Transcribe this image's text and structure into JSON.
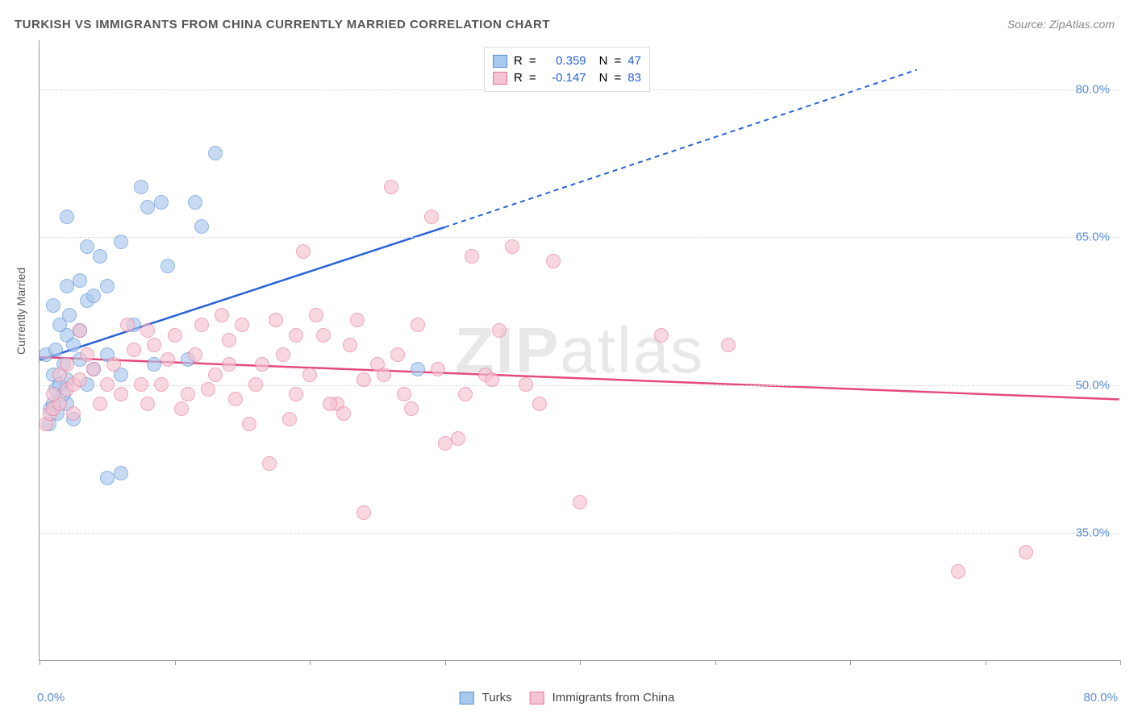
{
  "title": "TURKISH VS IMMIGRANTS FROM CHINA CURRENTLY MARRIED CORRELATION CHART",
  "source": "Source: ZipAtlas.com",
  "watermark_bold": "ZIP",
  "watermark_light": "atlas",
  "chart": {
    "type": "scatter",
    "y_axis_label": "Currently Married",
    "xlim": [
      0,
      80
    ],
    "ylim": [
      22,
      85
    ],
    "y_ticks": [
      35.0,
      50.0,
      65.0,
      80.0
    ],
    "y_tick_labels": [
      "35.0%",
      "50.0%",
      "65.0%",
      "80.0%"
    ],
    "x_ticks": [
      0,
      10,
      20,
      30,
      40,
      50,
      60,
      70,
      80
    ],
    "x_tick_origin_label": "0.0%",
    "x_tick_end_label": "80.0%",
    "background_color": "#ffffff",
    "grid_color": "#dddddd",
    "axis_color": "#999999",
    "tick_label_color": "#5a8fd6",
    "marker_radius": 9,
    "marker_opacity_fill": 0.35,
    "series": [
      {
        "key": "turks",
        "label": "Turks",
        "fill_color": "#a8c9ee",
        "stroke_color": "#5a8fd6",
        "trend_color": "#2962d9",
        "R": "0.359",
        "N": "47",
        "trend": {
          "x1": 0,
          "y1": 52.5,
          "x2_solid": 30,
          "y2_solid": 66,
          "x2_dash": 65,
          "y2_dash": 82
        },
        "points": [
          [
            0.8,
            47.5
          ],
          [
            1.0,
            48.0
          ],
          [
            1.2,
            49.5
          ],
          [
            1.0,
            51.0
          ],
          [
            1.5,
            50.0
          ],
          [
            1.8,
            52.0
          ],
          [
            2.0,
            50.5
          ],
          [
            0.5,
            53.0
          ],
          [
            1.2,
            53.5
          ],
          [
            2.0,
            55.0
          ],
          [
            2.5,
            54.0
          ],
          [
            1.5,
            56.0
          ],
          [
            2.2,
            57.0
          ],
          [
            3.0,
            55.5
          ],
          [
            1.0,
            58.0
          ],
          [
            3.5,
            58.5
          ],
          [
            2.0,
            60.0
          ],
          [
            4.0,
            59.0
          ],
          [
            3.0,
            60.5
          ],
          [
            5.0,
            60.0
          ],
          [
            4.5,
            63.0
          ],
          [
            3.5,
            64.0
          ],
          [
            6.0,
            64.5
          ],
          [
            2.0,
            67.0
          ],
          [
            8.0,
            68.0
          ],
          [
            7.5,
            70.0
          ],
          [
            9.0,
            68.5
          ],
          [
            6.0,
            51.0
          ],
          [
            8.5,
            52.0
          ],
          [
            11.0,
            52.5
          ],
          [
            12.0,
            66.0
          ],
          [
            11.5,
            68.5
          ],
          [
            13.0,
            73.5
          ],
          [
            5.0,
            40.5
          ],
          [
            6.0,
            41.0
          ],
          [
            0.7,
            46.0
          ],
          [
            1.3,
            47.0
          ],
          [
            2.0,
            48.0
          ],
          [
            3.5,
            50.0
          ],
          [
            4.0,
            51.5
          ],
          [
            5.0,
            53.0
          ],
          [
            2.5,
            46.5
          ],
          [
            28.0,
            51.5
          ],
          [
            3.0,
            52.5
          ],
          [
            7.0,
            56.0
          ],
          [
            9.5,
            62.0
          ],
          [
            1.8,
            49.0
          ]
        ]
      },
      {
        "key": "china",
        "label": "Immigrants from China",
        "fill_color": "#f5c3d1",
        "stroke_color": "#e67b9a",
        "trend_color": "#e54b7a",
        "R": "-0.147",
        "N": "83",
        "trend": {
          "x1": 0,
          "y1": 52.8,
          "x2_solid": 80,
          "y2_solid": 48.5,
          "x2_dash": 80,
          "y2_dash": 48.5
        },
        "points": [
          [
            0.5,
            46.0
          ],
          [
            0.8,
            47.0
          ],
          [
            1.0,
            47.5
          ],
          [
            1.5,
            48.0
          ],
          [
            1.0,
            49.0
          ],
          [
            2.0,
            49.5
          ],
          [
            2.5,
            50.0
          ],
          [
            1.5,
            51.0
          ],
          [
            3.0,
            50.5
          ],
          [
            2.0,
            52.0
          ],
          [
            4.0,
            51.5
          ],
          [
            3.5,
            53.0
          ],
          [
            5.0,
            50.0
          ],
          [
            5.5,
            52.0
          ],
          [
            6.0,
            49.0
          ],
          [
            7.0,
            53.5
          ],
          [
            8.0,
            48.0
          ],
          [
            8.5,
            54.0
          ],
          [
            9.0,
            50.0
          ],
          [
            10.0,
            55.0
          ],
          [
            9.5,
            52.5
          ],
          [
            11.0,
            49.0
          ],
          [
            12.0,
            56.0
          ],
          [
            11.5,
            53.0
          ],
          [
            13.0,
            51.0
          ],
          [
            14.0,
            54.5
          ],
          [
            14.5,
            48.5
          ],
          [
            15.0,
            56.0
          ],
          [
            16.0,
            50.0
          ],
          [
            17.0,
            42.0
          ],
          [
            17.5,
            56.5
          ],
          [
            18.0,
            53.0
          ],
          [
            19.0,
            49.0
          ],
          [
            19.5,
            63.5
          ],
          [
            20.0,
            51.0
          ],
          [
            21.0,
            55.0
          ],
          [
            22.0,
            48.0
          ],
          [
            22.5,
            47.0
          ],
          [
            23.0,
            54.0
          ],
          [
            24.0,
            50.5
          ],
          [
            25.0,
            52.0
          ],
          [
            26.0,
            70.0
          ],
          [
            27.0,
            49.0
          ],
          [
            28.0,
            56.0
          ],
          [
            29.0,
            67.0
          ],
          [
            30.0,
            44.0
          ],
          [
            31.0,
            44.5
          ],
          [
            24.0,
            37.0
          ],
          [
            32.0,
            63.0
          ],
          [
            33.0,
            51.0
          ],
          [
            34.0,
            55.5
          ],
          [
            35.0,
            64.0
          ],
          [
            37.0,
            48.0
          ],
          [
            38.0,
            62.5
          ],
          [
            40.0,
            38.0
          ],
          [
            46.0,
            55.0
          ],
          [
            51.0,
            54.0
          ],
          [
            68.0,
            31.0
          ],
          [
            73.0,
            33.0
          ],
          [
            3.0,
            55.5
          ],
          [
            6.5,
            56.0
          ],
          [
            7.5,
            50.0
          ],
          [
            10.5,
            47.5
          ],
          [
            13.5,
            57.0
          ],
          [
            15.5,
            46.0
          ],
          [
            18.5,
            46.5
          ],
          [
            20.5,
            57.0
          ],
          [
            23.5,
            56.5
          ],
          [
            26.5,
            53.0
          ],
          [
            29.5,
            51.5
          ],
          [
            31.5,
            49.0
          ],
          [
            4.5,
            48.0
          ],
          [
            12.5,
            49.5
          ],
          [
            21.5,
            48.0
          ],
          [
            27.5,
            47.5
          ],
          [
            33.5,
            50.5
          ],
          [
            36.0,
            50.0
          ],
          [
            2.5,
            47.0
          ],
          [
            16.5,
            52.0
          ],
          [
            19.0,
            55.0
          ],
          [
            25.5,
            51.0
          ],
          [
            8.0,
            55.5
          ],
          [
            14.0,
            52.0
          ]
        ]
      }
    ]
  },
  "legend_top": {
    "r_label": "R",
    "n_label": "N",
    "eq": "="
  },
  "legend_bottom": {
    "series1_label": "Turks",
    "series2_label": "Immigrants from China"
  }
}
